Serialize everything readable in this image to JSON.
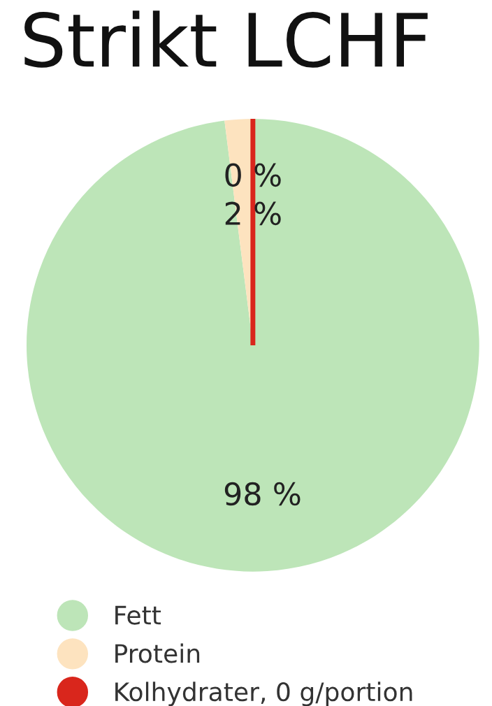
{
  "chart_data": {
    "type": "pie",
    "title": "Strikt LCHF",
    "categories": [
      "Fett",
      "Protein",
      "Kolhydrater, 0 g/portion"
    ],
    "values": [
      98,
      2,
      0
    ],
    "colors": [
      "#bde5b8",
      "#fde3bf",
      "#d9261c"
    ],
    "value_labels": [
      "98 %",
      "2 %",
      "0 %"
    ],
    "legend": "bottom"
  }
}
